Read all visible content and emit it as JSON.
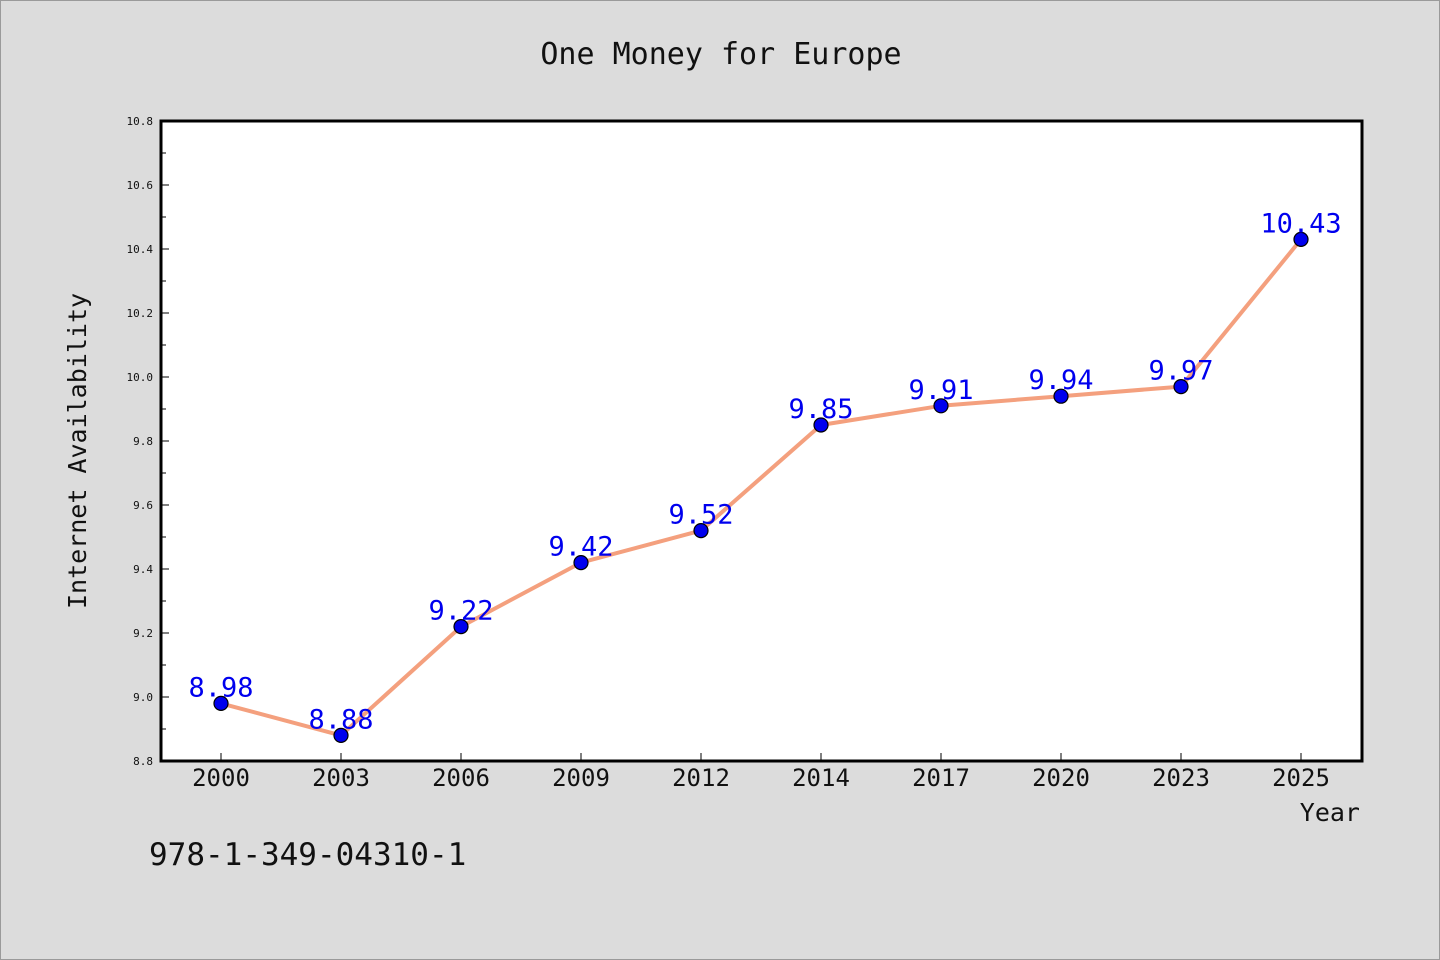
{
  "chart_data": {
    "type": "line",
    "title": "One Money for Europe",
    "xlabel": "Year",
    "ylabel": "Internet Availability",
    "categories": [
      "2000",
      "2003",
      "2006",
      "2009",
      "2012",
      "2014",
      "2017",
      "2020",
      "2023",
      "2025"
    ],
    "series": [
      {
        "values": [
          8.98,
          8.88,
          9.22,
          9.42,
          9.52,
          9.85,
          9.91,
          9.94,
          9.97,
          10.43
        ],
        "line_color": "#f4a07e",
        "marker_color": "#0000ee",
        "label_color": "#0000ee"
      }
    ],
    "ylim": [
      8.8,
      10.8
    ],
    "y_ticks": [
      "8.8",
      "9.0",
      "9.2",
      "9.4",
      "9.6",
      "9.8",
      "10.0",
      "10.2",
      "10.4",
      "10.6",
      "10.8"
    ],
    "grid": false,
    "legend": "none"
  },
  "footer": {
    "text": "978-1-349-04310-1"
  }
}
